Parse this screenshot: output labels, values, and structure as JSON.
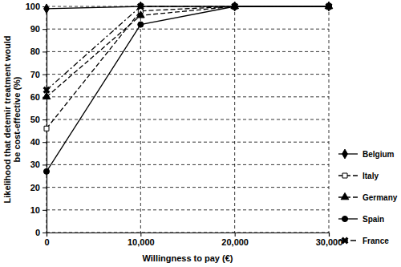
{
  "chart_data": {
    "type": "line",
    "x_label": "Willingness to pay (€)",
    "y_label": "Likelihood that detemir treatment would be cost-effective (%)",
    "x": [
      0,
      10000,
      20000,
      30000
    ],
    "xlim": [
      0,
      30000
    ],
    "xticks": [
      0,
      {
        "value": 10000,
        "label": "10,000"
      },
      {
        "value": 20000,
        "label": "20,000"
      },
      {
        "value": 30000,
        "label": "30,000"
      }
    ],
    "ylim": [
      0,
      100
    ],
    "yticks": [
      0,
      10,
      20,
      30,
      40,
      50,
      60,
      70,
      80,
      90,
      100
    ],
    "grid": true,
    "legend": "right",
    "series": [
      {
        "name": "Belgium",
        "color": "#000000",
        "marker": "diamond",
        "line_style": "solid",
        "values": [
          99,
          100,
          100,
          100
        ]
      },
      {
        "name": "Italy",
        "color": "#000000",
        "marker": "square-open",
        "line_style": "dashed",
        "values": [
          46,
          98,
          100,
          100
        ]
      },
      {
        "name": "Germany",
        "color": "#000000",
        "marker": "triangle",
        "line_style": "dashed",
        "values": [
          60,
          96,
          100,
          100
        ]
      },
      {
        "name": "Spain",
        "color": "#000000",
        "marker": "circle",
        "line_style": "solid",
        "values": [
          27,
          92,
          100,
          100
        ]
      },
      {
        "name": "France",
        "color": "#000000",
        "marker": "x",
        "line_style": "dashdot",
        "values": [
          63,
          100,
          100,
          100
        ]
      }
    ]
  }
}
